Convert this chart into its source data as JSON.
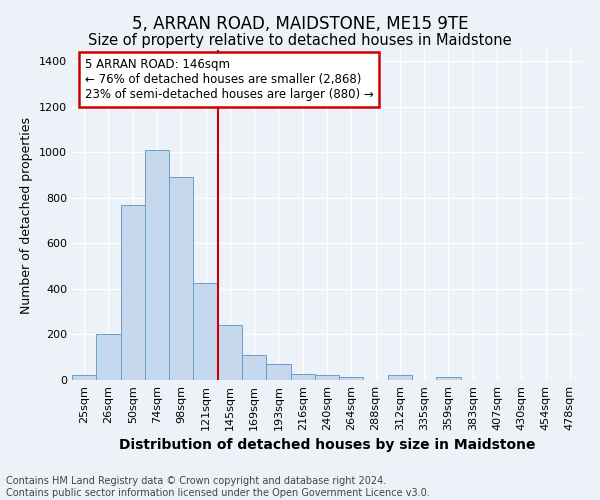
{
  "title": "5, ARRAN ROAD, MAIDSTONE, ME15 9TE",
  "subtitle": "Size of property relative to detached houses in Maidstone",
  "xlabel": "Distribution of detached houses by size in Maidstone",
  "ylabel": "Number of detached properties",
  "footnote1": "Contains HM Land Registry data © Crown copyright and database right 2024.",
  "footnote2": "Contains public sector information licensed under the Open Government Licence v3.0.",
  "bar_labels": [
    "25sqm",
    "26sqm",
    "50sqm",
    "74sqm",
    "98sqm",
    "121sqm",
    "145sqm",
    "169sqm",
    "193sqm",
    "216sqm",
    "240sqm",
    "264sqm",
    "288sqm",
    "312sqm",
    "335sqm",
    "359sqm",
    "383sqm",
    "407sqm",
    "430sqm",
    "454sqm",
    "478sqm"
  ],
  "bar_values": [
    20,
    200,
    770,
    1010,
    890,
    425,
    240,
    110,
    70,
    27,
    22,
    15,
    0,
    20,
    0,
    15,
    0,
    0,
    0,
    0,
    0
  ],
  "bar_color": "#c5d8ee",
  "bar_edgecolor": "#6b9fc8",
  "highlight_bar_index": 5,
  "highlight_color": "#cc0000",
  "annotation_text": "5 ARRAN ROAD: 146sqm\n← 76% of detached houses are smaller (2,868)\n23% of semi-detached houses are larger (880) →",
  "annotation_box_color": "#ffffff",
  "annotation_box_edgecolor": "#cc0000",
  "ylim": [
    0,
    1450
  ],
  "yticks": [
    0,
    200,
    400,
    600,
    800,
    1000,
    1200,
    1400
  ],
  "background_color": "#edf2f9",
  "plot_bg_color": "#edf2f9",
  "grid_color": "#ffffff",
  "title_fontsize": 12,
  "subtitle_fontsize": 10.5,
  "xlabel_fontsize": 10,
  "ylabel_fontsize": 9,
  "tick_fontsize": 8,
  "annotation_fontsize": 8.5,
  "footnote_fontsize": 7
}
